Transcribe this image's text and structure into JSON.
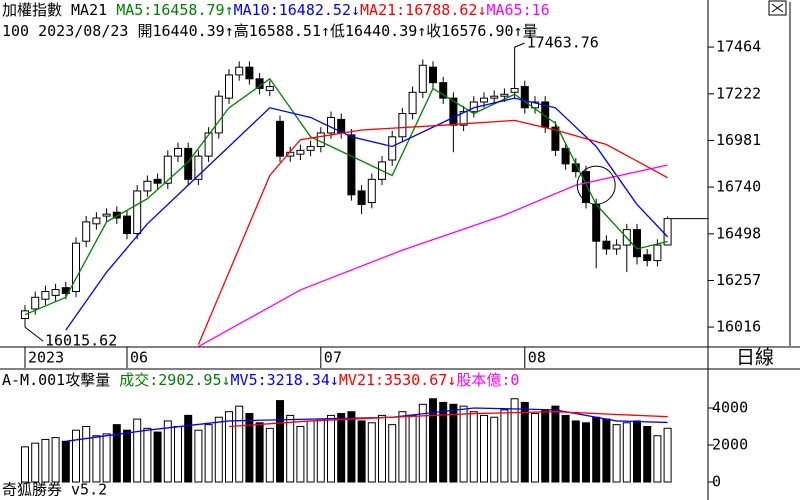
{
  "chart_data": {
    "type": "candlestick",
    "title": "加權指數 MA21",
    "info": "100 2023/08/23 開16440.39↑高16588.51↑低16440.39↑收16576.90↑量",
    "indicators": [
      {
        "label": "MA5:16458.79",
        "arrow": "↑",
        "color": "#008000",
        "x": [
          0,
          4,
          8,
          12,
          16,
          20,
          24,
          28,
          32,
          36,
          40,
          44,
          48,
          52,
          56,
          60,
          63
        ],
        "values": [
          16080,
          16170,
          16560,
          16680,
          16870,
          17150,
          17300,
          17000,
          16900,
          16800,
          17250,
          17120,
          17220,
          17070,
          16650,
          16420,
          16458.79
        ]
      },
      {
        "label": "MA10:16482.52",
        "arrow": "↓",
        "color": "#0000ff",
        "x": [
          4,
          8,
          12,
          16,
          20,
          24,
          28,
          32,
          36,
          40,
          44,
          48,
          52,
          56,
          60,
          63
        ],
        "values": [
          16000,
          16300,
          16550,
          16750,
          16950,
          17150,
          17100,
          17000,
          16950,
          17050,
          17150,
          17200,
          17150,
          16950,
          16650,
          16482.52
        ]
      },
      {
        "label": "MA21:16788.62",
        "arrow": "↓",
        "color": "#ff0000",
        "x": [
          17,
          24,
          27,
          33,
          41,
          48,
          52,
          57,
          63
        ],
        "values": [
          15925,
          16800,
          16985,
          17035,
          17060,
          17085,
          17035,
          16960,
          16788.62
        ]
      },
      {
        "label": "MA65:16",
        "arrow": "",
        "color": "#ff00ff",
        "x": [
          17,
          27,
          37,
          47,
          54,
          63
        ],
        "values": [
          15915,
          16208,
          16414,
          16595,
          16750,
          16854
        ]
      }
    ],
    "categories": [
      "2023",
      null,
      null,
      null,
      null,
      null,
      null,
      null,
      null,
      null,
      "06",
      null,
      null,
      null,
      null,
      null,
      null,
      null,
      null,
      null,
      null,
      null,
      null,
      null,
      null,
      null,
      null,
      null,
      null,
      "07",
      null,
      null,
      null,
      null,
      null,
      null,
      null,
      null,
      null,
      null,
      null,
      null,
      null,
      null,
      null,
      null,
      null,
      null,
      null,
      "08",
      null,
      null,
      null,
      null,
      null,
      null,
      null,
      null,
      null,
      null,
      null,
      null,
      null,
      null
    ],
    "open": [
      16060,
      16110,
      16160,
      16180,
      16220,
      16200,
      16460,
      16550,
      16590,
      16610,
      16590,
      16500,
      16720,
      16780,
      16760,
      16900,
      16940,
      16780,
      16900,
      17020,
      17200,
      17320,
      17360,
      17300,
      17240,
      17080,
      16900,
      16910,
      16930,
      16950,
      17020,
      17090,
      17010,
      16720,
      16660,
      16780,
      16880,
      17000,
      17120,
      17230,
      17360,
      17280,
      17200,
      17060,
      17130,
      17180,
      17200,
      17210,
      17230,
      17260,
      17150,
      17180,
      17050,
      16940,
      16860,
      16820,
      16650,
      16460,
      16420,
      16440,
      16520,
      16390,
      16360,
      16440.39
    ],
    "high": [
      16130,
      16200,
      16230,
      16240,
      16250,
      16480,
      16590,
      16610,
      16630,
      16640,
      16620,
      16750,
      16800,
      16810,
      16930,
      16970,
      16970,
      16930,
      17050,
      17240,
      17350,
      17390,
      17390,
      17330,
      17290,
      17110,
      16950,
      16960,
      16980,
      17050,
      17130,
      17120,
      17040,
      16750,
      16810,
      16900,
      17030,
      17150,
      17260,
      17400,
      17390,
      17310,
      17230,
      17160,
      17210,
      17230,
      17240,
      17250,
      17463.76,
      17290,
      17210,
      17210,
      17080,
      16970,
      16890,
      16850,
      16680,
      16490,
      16470,
      16550,
      16550,
      16420,
      16470,
      16588.51
    ],
    "low": [
      16015.62,
      16080,
      16130,
      16150,
      16160,
      16170,
      16430,
      16520,
      16560,
      16550,
      16470,
      16470,
      16690,
      16730,
      16730,
      16870,
      16750,
      16750,
      16870,
      16990,
      17170,
      17290,
      17270,
      17220,
      17210,
      16870,
      16870,
      16880,
      16900,
      16920,
      16990,
      16990,
      16670,
      16600,
      16630,
      16750,
      16850,
      16970,
      17090,
      17200,
      17250,
      17170,
      16920,
      17030,
      17100,
      17150,
      17170,
      17180,
      17200,
      17120,
      17120,
      17020,
      16900,
      16830,
      16790,
      16630,
      16320,
      16390,
      16390,
      16300,
      16340,
      16330,
      16330,
      16440.39
    ],
    "close": [
      16100,
      16170,
      16200,
      16210,
      16190,
      16450,
      16560,
      16580,
      16600,
      16580,
      16500,
      16720,
      16770,
      16760,
      16900,
      16940,
      16780,
      16900,
      17020,
      17210,
      17320,
      17360,
      17300,
      17250,
      17260,
      16900,
      16920,
      16930,
      16950,
      17020,
      17100,
      17020,
      16700,
      16650,
      16780,
      16870,
      17000,
      17120,
      17230,
      17370,
      17280,
      17200,
      17060,
      17130,
      17180,
      17200,
      17210,
      17220,
      17250,
      17150,
      17180,
      17050,
      16930,
      16860,
      16820,
      16660,
      16460,
      16420,
      16440,
      16520,
      16380,
      16360,
      16440,
      16576.9
    ],
    "ylim": [
      15913,
      17604
    ],
    "yticks": [
      17464,
      17222,
      16981,
      16740,
      16498,
      16257,
      16016
    ],
    "period": "日線",
    "volume": {
      "title": "A-M.001攻擊量",
      "indicators": [
        {
          "label": "成交:2902.95",
          "arrow": "↓",
          "color": "#008000"
        },
        {
          "label": "MV5:3218.34",
          "arrow": "↓",
          "color": "#0000ff",
          "x": [
            4,
            12,
            20,
            28,
            36,
            44,
            52,
            58,
            63
          ],
          "values": [
            2200,
            2800,
            3300,
            3400,
            3500,
            4000,
            3900,
            3300,
            3218.34
          ]
        },
        {
          "label": "MV21:3530.67",
          "arrow": "↓",
          "color": "#ff0000",
          "x": [
            20,
            28,
            36,
            44,
            52,
            58,
            63
          ],
          "values": [
            3000,
            3300,
            3500,
            3700,
            3800,
            3650,
            3530.67
          ]
        },
        {
          "label": "股本億:0",
          "arrow": "",
          "color": "#ff00ff"
        }
      ],
      "values": [
        1900,
        2100,
        2300,
        2400,
        2200,
        2800,
        3000,
        2500,
        2600,
        3100,
        2800,
        3400,
        2900,
        2700,
        3300,
        3000,
        3600,
        2800,
        3100,
        3500,
        3800,
        4100,
        3700,
        3200,
        2900,
        4400,
        3600,
        3000,
        3300,
        3400,
        3600,
        3700,
        3800,
        3300,
        3200,
        3600,
        3100,
        3800,
        3600,
        4200,
        4500,
        4300,
        4200,
        4100,
        3800,
        3600,
        3500,
        3900,
        4500,
        4300,
        3700,
        3900,
        4100,
        3600,
        3300,
        3200,
        3500,
        3400,
        3100,
        3200,
        3300,
        3000,
        2500,
        2902.95
      ],
      "ylim": [
        0,
        5946
      ],
      "yticks": [
        4000,
        2000,
        0
      ]
    },
    "footer": "奇狐勝券 v5.2"
  }
}
